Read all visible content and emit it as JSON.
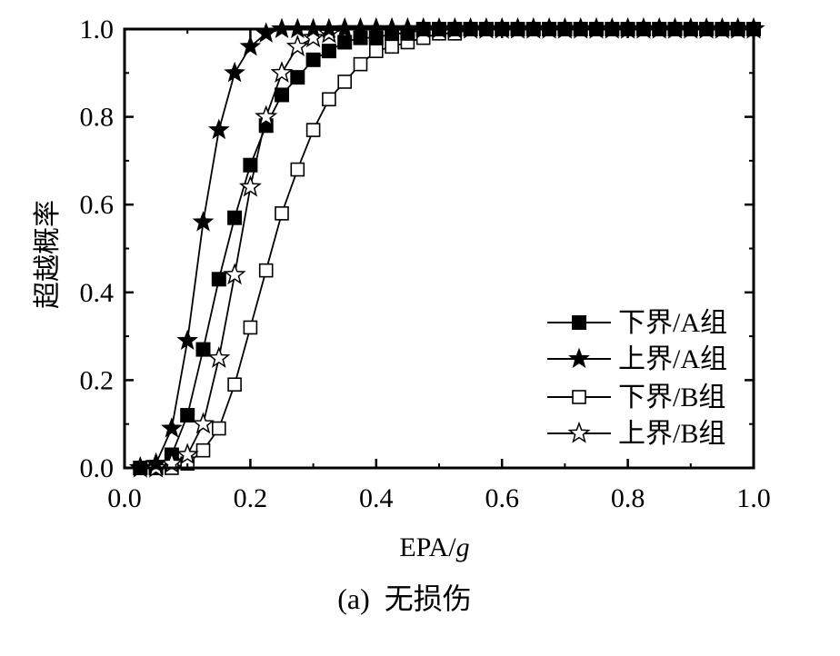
{
  "chart_data": {
    "type": "line",
    "xlabel": "EPA/",
    "xlabel_italic": "g",
    "ylabel": "超越概率",
    "xlim": [
      0.0,
      1.0
    ],
    "ylim": [
      0.0,
      1.0
    ],
    "xticks": [
      "0.0",
      "0.2",
      "0.4",
      "0.6",
      "0.8",
      "1.0"
    ],
    "yticks": [
      "0.0",
      "0.2",
      "0.4",
      "0.6",
      "0.8",
      "1.0"
    ],
    "grid": false,
    "legend_position": "bottom-right",
    "caption": "(a)  无损伤",
    "series": [
      {
        "name": "下界/A组",
        "marker": "filled-square",
        "x": [
          0.025,
          0.05,
          0.075,
          0.1,
          0.125,
          0.15,
          0.175,
          0.2,
          0.225,
          0.25,
          0.275,
          0.3,
          0.325,
          0.35,
          0.375,
          0.4,
          0.425,
          0.45,
          0.475,
          0.5,
          0.525,
          0.55,
          0.575,
          0.6,
          0.625,
          0.65,
          0.675,
          0.7,
          0.725,
          0.75,
          0.775,
          0.8,
          0.825,
          0.85,
          0.875,
          0.9,
          0.925,
          0.95,
          0.975,
          1.0
        ],
        "y": [
          0.0,
          0.0,
          0.03,
          0.12,
          0.27,
          0.43,
          0.57,
          0.69,
          0.78,
          0.85,
          0.89,
          0.93,
          0.95,
          0.97,
          0.98,
          0.98,
          0.99,
          0.99,
          1.0,
          1.0,
          1.0,
          1.0,
          1.0,
          1.0,
          1.0,
          1.0,
          1.0,
          1.0,
          1.0,
          1.0,
          1.0,
          1.0,
          1.0,
          1.0,
          1.0,
          1.0,
          1.0,
          1.0,
          1.0,
          1.0
        ]
      },
      {
        "name": "上界/A组",
        "marker": "filled-star",
        "x": [
          0.025,
          0.05,
          0.075,
          0.1,
          0.125,
          0.15,
          0.175,
          0.2,
          0.225,
          0.25,
          0.275,
          0.3,
          0.325,
          0.35,
          0.375,
          0.4,
          0.425,
          0.45,
          0.475,
          0.5,
          0.525,
          0.55,
          0.575,
          0.6,
          0.625,
          0.65,
          0.675,
          0.7,
          0.725,
          0.75,
          0.775,
          0.8,
          0.825,
          0.85,
          0.875,
          0.9,
          0.925,
          0.95,
          0.975,
          1.0
        ],
        "y": [
          0.0,
          0.01,
          0.09,
          0.29,
          0.56,
          0.77,
          0.9,
          0.96,
          0.99,
          1.0,
          1.0,
          1.0,
          1.0,
          1.0,
          1.0,
          1.0,
          1.0,
          1.0,
          1.0,
          1.0,
          1.0,
          1.0,
          1.0,
          1.0,
          1.0,
          1.0,
          1.0,
          1.0,
          1.0,
          1.0,
          1.0,
          1.0,
          1.0,
          1.0,
          1.0,
          1.0,
          1.0,
          1.0,
          1.0,
          1.0
        ]
      },
      {
        "name": "下界/B组",
        "marker": "open-square",
        "x": [
          0.025,
          0.05,
          0.075,
          0.1,
          0.125,
          0.15,
          0.175,
          0.2,
          0.225,
          0.25,
          0.275,
          0.3,
          0.325,
          0.35,
          0.375,
          0.4,
          0.425,
          0.45,
          0.475,
          0.5,
          0.525,
          0.55,
          0.575,
          0.6,
          0.625,
          0.65,
          0.675,
          0.7,
          0.725,
          0.75,
          0.775,
          0.8,
          0.825,
          0.85,
          0.875,
          0.9,
          0.925,
          0.95,
          0.975,
          1.0
        ],
        "y": [
          0.0,
          0.0,
          0.0,
          0.01,
          0.04,
          0.09,
          0.19,
          0.32,
          0.45,
          0.58,
          0.68,
          0.77,
          0.84,
          0.88,
          0.92,
          0.95,
          0.96,
          0.97,
          0.98,
          0.99,
          0.99,
          1.0,
          1.0,
          1.0,
          1.0,
          1.0,
          1.0,
          1.0,
          1.0,
          1.0,
          1.0,
          1.0,
          1.0,
          1.0,
          1.0,
          1.0,
          1.0,
          1.0,
          1.0,
          1.0
        ]
      },
      {
        "name": "上界/B组",
        "marker": "open-star",
        "x": [
          0.025,
          0.05,
          0.075,
          0.1,
          0.125,
          0.15,
          0.175,
          0.2,
          0.225,
          0.25,
          0.275,
          0.3,
          0.325,
          0.35,
          0.375,
          0.4,
          0.425,
          0.45,
          0.475,
          0.5,
          0.525,
          0.55,
          0.575,
          0.6,
          0.625,
          0.65,
          0.675,
          0.7,
          0.725,
          0.75,
          0.775,
          0.8,
          0.825,
          0.85,
          0.875,
          0.9,
          0.925,
          0.95,
          0.975,
          1.0
        ],
        "y": [
          0.0,
          0.0,
          0.01,
          0.03,
          0.1,
          0.25,
          0.44,
          0.64,
          0.8,
          0.9,
          0.96,
          0.98,
          0.99,
          1.0,
          1.0,
          1.0,
          1.0,
          1.0,
          1.0,
          1.0,
          1.0,
          1.0,
          1.0,
          1.0,
          1.0,
          1.0,
          1.0,
          1.0,
          1.0,
          1.0,
          1.0,
          1.0,
          1.0,
          1.0,
          1.0,
          1.0,
          1.0,
          1.0,
          1.0,
          1.0
        ]
      }
    ]
  }
}
